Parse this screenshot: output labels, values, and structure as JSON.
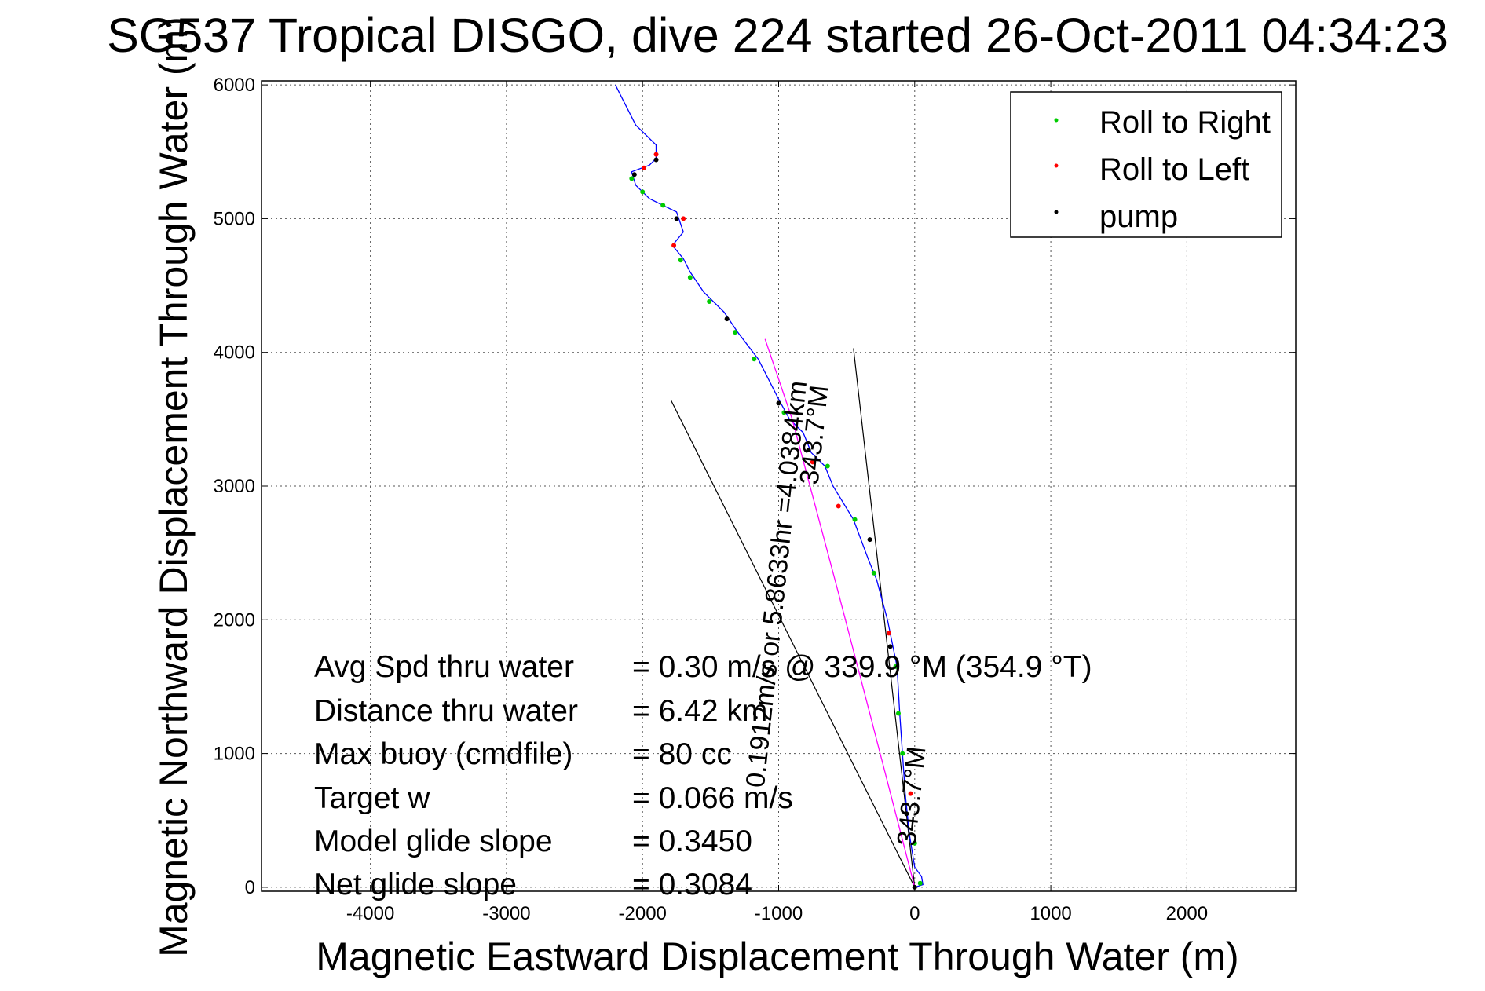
{
  "chart_data": {
    "type": "line",
    "title": "SG537 Tropical DISGO, dive 224 started 26-Oct-2011 04:34:23",
    "xlabel": "Magnetic Eastward Displacement Through Water (m)",
    "ylabel": "Magnetic Northward Displacement Through Water (m)",
    "xlim": [
      -4800,
      2800
    ],
    "ylim": [
      -30,
      6030
    ],
    "xticks": [
      -4000,
      -3000,
      -2000,
      -1000,
      0,
      1000,
      2000
    ],
    "yticks": [
      0,
      1000,
      2000,
      3000,
      4000,
      5000,
      6000
    ],
    "grid": true,
    "legend_position": "top-right",
    "legend": [
      {
        "label": "Roll to Right",
        "color": "#00cc00"
      },
      {
        "label": "Roll to Left",
        "color": "#ff0000"
      },
      {
        "label": "pump",
        "color": "#000000"
      }
    ],
    "series": [
      {
        "name": "track",
        "color": "#0000ff",
        "points": [
          [
            0,
            0
          ],
          [
            60,
            20
          ],
          [
            50,
            80
          ],
          [
            0,
            150
          ],
          [
            -40,
            400
          ],
          [
            -70,
            700
          ],
          [
            -90,
            1000
          ],
          [
            -110,
            1300
          ],
          [
            -130,
            1650
          ],
          [
            -200,
            2000
          ],
          [
            -240,
            2150
          ],
          [
            -280,
            2300
          ],
          [
            -340,
            2450
          ],
          [
            -450,
            2750
          ],
          [
            -600,
            3000
          ],
          [
            -660,
            3150
          ],
          [
            -760,
            3250
          ],
          [
            -820,
            3400
          ],
          [
            -920,
            3500
          ],
          [
            -1000,
            3650
          ],
          [
            -1150,
            3950
          ],
          [
            -1300,
            4150
          ],
          [
            -1400,
            4300
          ],
          [
            -1550,
            4450
          ],
          [
            -1650,
            4600
          ],
          [
            -1700,
            4700
          ],
          [
            -1780,
            4800
          ],
          [
            -1700,
            4900
          ],
          [
            -1750,
            5050
          ],
          [
            -1850,
            5100
          ],
          [
            -1950,
            5150
          ],
          [
            -2050,
            5250
          ],
          [
            -2080,
            5350
          ],
          [
            -1950,
            5400
          ],
          [
            -1900,
            5450
          ],
          [
            -1900,
            5550
          ],
          [
            -2050,
            5700
          ],
          [
            -2200,
            6000
          ]
        ]
      },
      {
        "name": "great circle",
        "color": "#ff00ff",
        "points": [
          [
            0,
            0
          ],
          [
            -330,
            1300
          ],
          [
            -560,
            2200
          ],
          [
            -900,
            3500
          ],
          [
            -1100,
            4100
          ]
        ]
      }
    ],
    "annotation_lines": [
      {
        "from": [
          0,
          0
        ],
        "to": [
          -1790,
          3640
        ],
        "color": "#000000"
      },
      {
        "from": [
          0,
          0
        ],
        "to": [
          -450,
          4030
        ],
        "color": "#000000"
      }
    ],
    "markers": {
      "roll_right": [
        [
          40,
          30
        ],
        [
          0,
          330
        ],
        [
          -90,
          1000
        ],
        [
          -120,
          1300
        ],
        [
          -140,
          1650
        ],
        [
          -300,
          2350
        ],
        [
          -440,
          2750
        ],
        [
          -640,
          3150
        ],
        [
          -960,
          3550
        ],
        [
          -1180,
          3950
        ],
        [
          -1320,
          4150
        ],
        [
          -1510,
          4380
        ],
        [
          -1650,
          4560
        ],
        [
          -1720,
          4690
        ],
        [
          -1850,
          5100
        ],
        [
          -2000,
          5200
        ],
        [
          -2080,
          5300
        ]
      ],
      "roll_left": [
        [
          -30,
          700
        ],
        [
          -190,
          1900
        ],
        [
          -560,
          2850
        ],
        [
          -750,
          3180
        ],
        [
          -1770,
          4800
        ],
        [
          -1700,
          5000
        ],
        [
          -1990,
          5380
        ],
        [
          -1900,
          5480
        ]
      ],
      "pump": [
        [
          0,
          0
        ],
        [
          -60,
          550
        ],
        [
          -180,
          1800
        ],
        [
          -330,
          2600
        ],
        [
          -780,
          3270
        ],
        [
          -1000,
          3620
        ],
        [
          -1380,
          4250
        ],
        [
          -1750,
          5000
        ],
        [
          -2060,
          5330
        ],
        [
          -1900,
          5440
        ]
      ]
    },
    "annotations": [
      {
        "text": "0.1912m/s or 5.8633hr =4.0384km",
        "rotation": -84
      },
      {
        "text": "343.7°M",
        "rotation": -84
      },
      {
        "text": "343.7°M",
        "rotation": -84
      }
    ],
    "stats": [
      {
        "label": "Avg Spd thru water",
        "value": "=  0.30 m/s @ 339.9 °M (354.9 °T)"
      },
      {
        "label": "Distance thru water",
        "value": "=  6.42 km"
      },
      {
        "label": "Max buoy (cmdfile)",
        "value": "= 80 cc"
      },
      {
        "label": "Target w",
        "value": "= 0.066 m/s"
      },
      {
        "label": "Model glide slope",
        "value": "= 0.3450"
      },
      {
        "label": "Net glide slope",
        "value": "= 0.3084"
      }
    ]
  }
}
